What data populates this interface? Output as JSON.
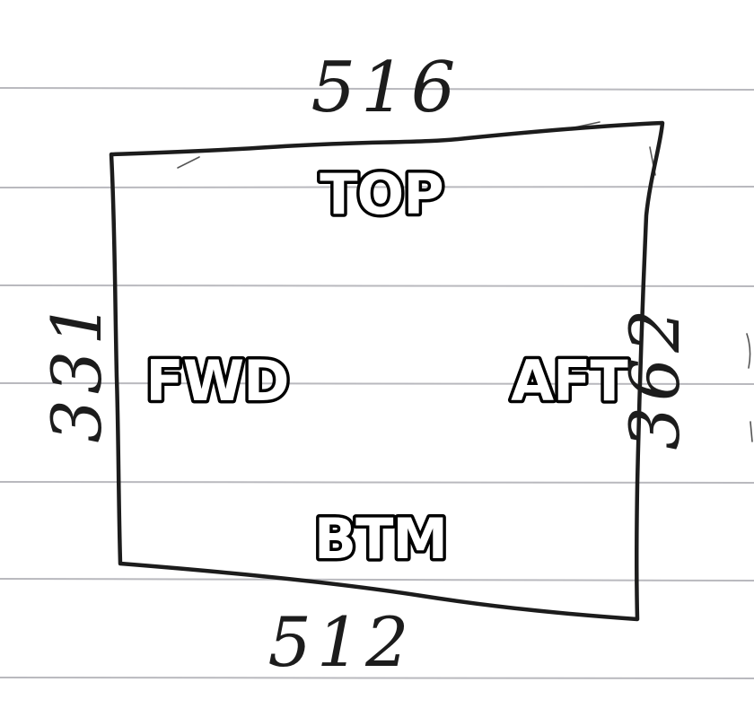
{
  "diagram": {
    "faces": {
      "top": "TOP",
      "forward": "FWD",
      "aft": "AFT",
      "bottom": "BTM"
    },
    "dimensions": {
      "top": "516",
      "bottom": "512",
      "left": "331",
      "right": "362"
    }
  }
}
